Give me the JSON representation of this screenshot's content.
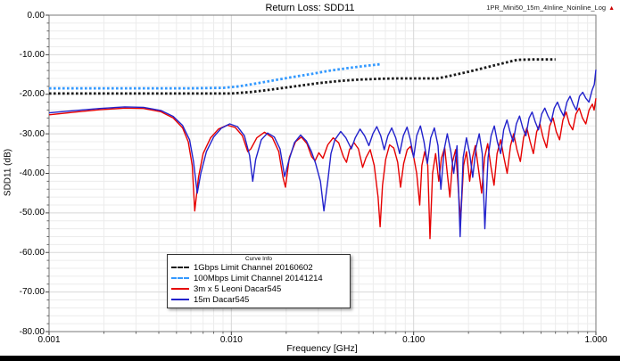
{
  "header": {
    "title": "Return Loss: SDD11",
    "top_right_label": "1PR_Mini50_15m_4Inline_Noinline_Log",
    "top_right_marker": "▲"
  },
  "colors": {
    "limit_1gbps": "#1a1a1a",
    "limit_100mbps": "#3399ff",
    "red_cable": "#e60000",
    "blue_cable": "#2222cc",
    "grid_minor": "#ececec",
    "grid_major": "#d8d8d8",
    "plot_border": "#777777",
    "marker_triangle": "#cc0000"
  },
  "chart_data": {
    "type": "line",
    "title": "Return Loss: SDD11",
    "xlabel": "Frequency [GHz]",
    "ylabel": "SDD11 (dB)",
    "x_scale": "log",
    "xlim": [
      0.001,
      1.0
    ],
    "ylim": [
      -80,
      0
    ],
    "grid": true,
    "x_tick_values": [
      0.001,
      0.01,
      0.1,
      1.0
    ],
    "x_tick_labels": [
      "0.001",
      "0.010",
      "0.100",
      "1.000"
    ],
    "y_tick_values": [
      0,
      -10,
      -20,
      -30,
      -40,
      -50,
      -60,
      -70,
      -80
    ],
    "y_tick_labels": [
      "0.00",
      "-10.00",
      "-20.00",
      "-30.00",
      "-40.00",
      "-50.00",
      "-60.00",
      "-70.00",
      "-80.00"
    ],
    "legend": {
      "title": "Curve Info",
      "position": "inside-bottom-left",
      "entries": [
        {
          "label": "1Gbps Limit Channel 20160602",
          "color": "#1a1a1a",
          "style": "dashed"
        },
        {
          "label": "100Mbps Limit Channel 20141214",
          "color": "#3399ff",
          "style": "dashed"
        },
        {
          "label": "3m x 5 Leoni Dacar545",
          "color": "#e60000",
          "style": "solid"
        },
        {
          "label": "15m Dacar545",
          "color": "#2222cc",
          "style": "solid"
        }
      ]
    },
    "series": [
      {
        "name": "1Gbps Limit Channel 20160602",
        "color": "#1a1a1a",
        "style": "dashed",
        "points": [
          [
            0.001,
            -19.8
          ],
          [
            0.003,
            -19.8
          ],
          [
            0.006,
            -19.8
          ],
          [
            0.01,
            -19.8
          ],
          [
            0.013,
            -19.4
          ],
          [
            0.016,
            -18.9
          ],
          [
            0.02,
            -18.3
          ],
          [
            0.025,
            -17.7
          ],
          [
            0.03,
            -17.2
          ],
          [
            0.04,
            -16.6
          ],
          [
            0.05,
            -16.3
          ],
          [
            0.065,
            -16.1
          ],
          [
            0.08,
            -16.0
          ],
          [
            0.1,
            -16.0
          ],
          [
            0.135,
            -16.0
          ],
          [
            0.16,
            -15.3
          ],
          [
            0.2,
            -14.3
          ],
          [
            0.25,
            -13.2
          ],
          [
            0.3,
            -12.3
          ],
          [
            0.37,
            -11.3
          ],
          [
            0.45,
            -11.2
          ],
          [
            0.6,
            -11.2
          ]
        ]
      },
      {
        "name": "100Mbps Limit Channel 20141214",
        "color": "#3399ff",
        "style": "dashed",
        "points": [
          [
            0.001,
            -18.5
          ],
          [
            0.003,
            -18.5
          ],
          [
            0.006,
            -18.5
          ],
          [
            0.009,
            -18.4
          ],
          [
            0.011,
            -18.0
          ],
          [
            0.014,
            -17.2
          ],
          [
            0.018,
            -16.3
          ],
          [
            0.022,
            -15.6
          ],
          [
            0.028,
            -14.8
          ],
          [
            0.035,
            -14.0
          ],
          [
            0.045,
            -13.3
          ],
          [
            0.055,
            -12.8
          ],
          [
            0.066,
            -12.4
          ]
        ]
      },
      {
        "name": "3m x 5 Leoni Dacar545",
        "color": "#e60000",
        "style": "solid",
        "points": [
          [
            0.001,
            -25.2
          ],
          [
            0.0014,
            -24.5
          ],
          [
            0.0019,
            -23.9
          ],
          [
            0.0026,
            -23.5
          ],
          [
            0.0033,
            -23.6
          ],
          [
            0.0041,
            -24.4
          ],
          [
            0.0048,
            -26
          ],
          [
            0.0054,
            -28.5
          ],
          [
            0.0058,
            -32
          ],
          [
            0.0061,
            -38
          ],
          [
            0.0063,
            -49.5
          ],
          [
            0.0066,
            -41
          ],
          [
            0.007,
            -35
          ],
          [
            0.0077,
            -31
          ],
          [
            0.0085,
            -28.8
          ],
          [
            0.0095,
            -27.8
          ],
          [
            0.0105,
            -28.4
          ],
          [
            0.0115,
            -30.5
          ],
          [
            0.0123,
            -34.5
          ],
          [
            0.0128,
            -33.8
          ],
          [
            0.0138,
            -31
          ],
          [
            0.0152,
            -29.6
          ],
          [
            0.0168,
            -31
          ],
          [
            0.0182,
            -34.5
          ],
          [
            0.0192,
            -41
          ],
          [
            0.0198,
            -43.5
          ],
          [
            0.0208,
            -36
          ],
          [
            0.0225,
            -32
          ],
          [
            0.0242,
            -30.8
          ],
          [
            0.026,
            -32.5
          ],
          [
            0.0276,
            -35.8
          ],
          [
            0.0288,
            -36.8
          ],
          [
            0.0302,
            -34.8
          ],
          [
            0.0318,
            -36.2
          ],
          [
            0.0338,
            -32.8
          ],
          [
            0.0362,
            -31
          ],
          [
            0.0388,
            -32.3
          ],
          [
            0.0412,
            -35.8
          ],
          [
            0.0428,
            -37.2
          ],
          [
            0.0445,
            -34
          ],
          [
            0.047,
            -32.2
          ],
          [
            0.0498,
            -33.8
          ],
          [
            0.0525,
            -38.5
          ],
          [
            0.0548,
            -36
          ],
          [
            0.0578,
            -34
          ],
          [
            0.0608,
            -38
          ],
          [
            0.0638,
            -46
          ],
          [
            0.0655,
            -53.5
          ],
          [
            0.0675,
            -43
          ],
          [
            0.0702,
            -36.5
          ],
          [
            0.0738,
            -32.8
          ],
          [
            0.0778,
            -33.6
          ],
          [
            0.0818,
            -37.2
          ],
          [
            0.0848,
            -43.5
          ],
          [
            0.0882,
            -37.5
          ],
          [
            0.0922,
            -34
          ],
          [
            0.0962,
            -33.2
          ],
          [
            0.1,
            -35.8
          ],
          [
            0.104,
            -40
          ],
          [
            0.108,
            -48
          ],
          [
            0.111,
            -38
          ],
          [
            0.115,
            -34.5
          ],
          [
            0.1195,
            -38
          ],
          [
            0.123,
            -56.5
          ],
          [
            0.127,
            -40
          ],
          [
            0.132,
            -35
          ],
          [
            0.1375,
            -42
          ],
          [
            0.142,
            -36.2
          ],
          [
            0.148,
            -33.5
          ],
          [
            0.153,
            -40
          ],
          [
            0.158,
            -46
          ],
          [
            0.1635,
            -37
          ],
          [
            0.17,
            -34
          ],
          [
            0.176,
            -44
          ],
          [
            0.181,
            -52
          ],
          [
            0.188,
            -38
          ],
          [
            0.195,
            -34.5
          ],
          [
            0.203,
            -42
          ],
          [
            0.2105,
            -36
          ],
          [
            0.218,
            -33
          ],
          [
            0.227,
            -39
          ],
          [
            0.236,
            -45
          ],
          [
            0.245,
            -36
          ],
          [
            0.255,
            -32.5
          ],
          [
            0.265,
            -38
          ],
          [
            0.276,
            -43
          ],
          [
            0.287,
            -35
          ],
          [
            0.3,
            -31.5
          ],
          [
            0.313,
            -36
          ],
          [
            0.326,
            -40
          ],
          [
            0.34,
            -33
          ],
          [
            0.354,
            -30
          ],
          [
            0.369,
            -34
          ],
          [
            0.385,
            -37
          ],
          [
            0.401,
            -31
          ],
          [
            0.418,
            -28.5
          ],
          [
            0.436,
            -32
          ],
          [
            0.454,
            -35
          ],
          [
            0.473,
            -29.5
          ],
          [
            0.493,
            -27.5
          ],
          [
            0.514,
            -31
          ],
          [
            0.536,
            -33.5
          ],
          [
            0.558,
            -28
          ],
          [
            0.582,
            -26
          ],
          [
            0.606,
            -29.5
          ],
          [
            0.632,
            -31.5
          ],
          [
            0.659,
            -26.5
          ],
          [
            0.686,
            -24.5
          ],
          [
            0.715,
            -27.5
          ],
          [
            0.746,
            -29
          ],
          [
            0.777,
            -25
          ],
          [
            0.81,
            -23.5
          ],
          [
            0.844,
            -26
          ],
          [
            0.88,
            -27.5
          ],
          [
            0.917,
            -24
          ],
          [
            0.956,
            -22.5
          ],
          [
            0.978,
            -24
          ],
          [
            1.0,
            -21
          ]
        ]
      },
      {
        "name": "15m Dacar545",
        "color": "#2222cc",
        "style": "solid",
        "points": [
          [
            0.001,
            -24.7
          ],
          [
            0.0014,
            -24.1
          ],
          [
            0.0019,
            -23.6
          ],
          [
            0.0026,
            -23.2
          ],
          [
            0.0033,
            -23.3
          ],
          [
            0.0041,
            -24.1
          ],
          [
            0.0048,
            -25.6
          ],
          [
            0.0054,
            -27.9
          ],
          [
            0.0059,
            -31.5
          ],
          [
            0.0062,
            -37
          ],
          [
            0.0065,
            -45
          ],
          [
            0.0068,
            -40
          ],
          [
            0.0073,
            -34.5
          ],
          [
            0.008,
            -30.8
          ],
          [
            0.0088,
            -28.6
          ],
          [
            0.0098,
            -27.5
          ],
          [
            0.0108,
            -28.2
          ],
          [
            0.0118,
            -30.5
          ],
          [
            0.0126,
            -35.5
          ],
          [
            0.0131,
            -42
          ],
          [
            0.0136,
            -36.5
          ],
          [
            0.0146,
            -31.5
          ],
          [
            0.0158,
            -29.8
          ],
          [
            0.0172,
            -30.8
          ],
          [
            0.0185,
            -33.8
          ],
          [
            0.0196,
            -40.8
          ],
          [
            0.0206,
            -37
          ],
          [
            0.0222,
            -32.2
          ],
          [
            0.024,
            -30.3
          ],
          [
            0.0258,
            -31.8
          ],
          [
            0.0275,
            -34.5
          ],
          [
            0.029,
            -37.5
          ],
          [
            0.0308,
            -42
          ],
          [
            0.0322,
            -49.5
          ],
          [
            0.0338,
            -42
          ],
          [
            0.0352,
            -35
          ],
          [
            0.037,
            -31.5
          ],
          [
            0.0398,
            -29.4
          ],
          [
            0.0425,
            -31
          ],
          [
            0.0455,
            -33.8
          ],
          [
            0.0478,
            -31
          ],
          [
            0.0508,
            -28.8
          ],
          [
            0.0538,
            -30.5
          ],
          [
            0.0568,
            -33
          ],
          [
            0.0598,
            -30
          ],
          [
            0.0628,
            -28.2
          ],
          [
            0.066,
            -30.5
          ],
          [
            0.069,
            -34
          ],
          [
            0.0722,
            -30.5
          ],
          [
            0.0758,
            -28.5
          ],
          [
            0.0798,
            -31
          ],
          [
            0.0838,
            -35
          ],
          [
            0.0878,
            -30.5
          ],
          [
            0.092,
            -28.3
          ],
          [
            0.096,
            -31.5
          ],
          [
            0.1,
            -36
          ],
          [
            0.104,
            -30.5
          ],
          [
            0.109,
            -28
          ],
          [
            0.114,
            -32
          ],
          [
            0.119,
            -37.5
          ],
          [
            0.124,
            -31
          ],
          [
            0.13,
            -28.5
          ],
          [
            0.136,
            -33
          ],
          [
            0.141,
            -44
          ],
          [
            0.147,
            -34
          ],
          [
            0.153,
            -30
          ],
          [
            0.16,
            -34.5
          ],
          [
            0.166,
            -40
          ],
          [
            0.173,
            -33
          ],
          [
            0.18,
            -56
          ],
          [
            0.187,
            -36
          ],
          [
            0.195,
            -31
          ],
          [
            0.203,
            -35
          ],
          [
            0.211,
            -41
          ],
          [
            0.22,
            -33.5
          ],
          [
            0.229,
            -30
          ],
          [
            0.238,
            -35
          ],
          [
            0.246,
            -54
          ],
          [
            0.256,
            -36
          ],
          [
            0.266,
            -30.5
          ],
          [
            0.277,
            -28
          ],
          [
            0.288,
            -32
          ],
          [
            0.3,
            -35
          ],
          [
            0.312,
            -29
          ],
          [
            0.325,
            -26.5
          ],
          [
            0.338,
            -29.5
          ],
          [
            0.352,
            -32
          ],
          [
            0.366,
            -27.5
          ],
          [
            0.381,
            -25.5
          ],
          [
            0.397,
            -28.5
          ],
          [
            0.413,
            -30.5
          ],
          [
            0.43,
            -26
          ],
          [
            0.447,
            -24.5
          ],
          [
            0.465,
            -27
          ],
          [
            0.484,
            -29
          ],
          [
            0.504,
            -25
          ],
          [
            0.524,
            -23.5
          ],
          [
            0.546,
            -25.5
          ],
          [
            0.568,
            -27
          ],
          [
            0.591,
            -23.5
          ],
          [
            0.615,
            -22
          ],
          [
            0.64,
            -24
          ],
          [
            0.666,
            -25.5
          ],
          [
            0.693,
            -22
          ],
          [
            0.721,
            -20.5
          ],
          [
            0.75,
            -22.5
          ],
          [
            0.781,
            -24
          ],
          [
            0.813,
            -20.5
          ],
          [
            0.846,
            -19.5
          ],
          [
            0.88,
            -21
          ],
          [
            0.916,
            -22
          ],
          [
            0.953,
            -19
          ],
          [
            0.98,
            -17.5
          ],
          [
            1.0,
            -13.8
          ]
        ]
      }
    ]
  }
}
